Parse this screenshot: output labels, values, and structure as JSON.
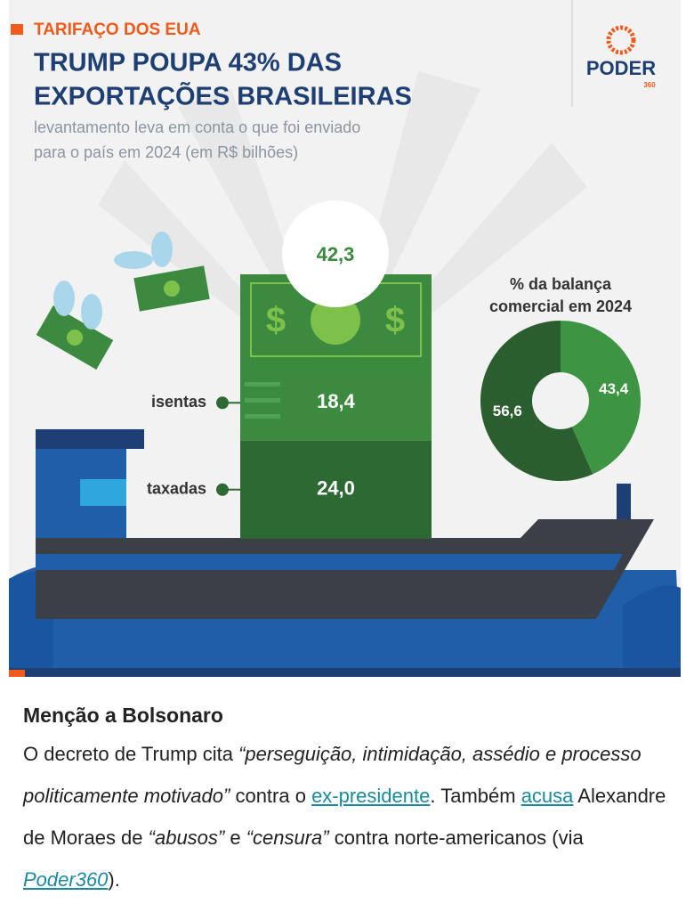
{
  "infographic": {
    "kicker": "TARIFAÇO DOS EUA",
    "title_lines": [
      "TRUMP POUPA 43% DAS",
      "EXPORTAÇÕES BRASILEIRAS"
    ],
    "subtitle_lines": [
      "levantamento leva em conta o que foi enviado",
      "para o país em 2024 (em R$ bilhões)"
    ],
    "logo": "PODER",
    "logo_sub": "360"
  },
  "chart_data": [
    {
      "type": "bar",
      "stacked": true,
      "categories": [
        null
      ],
      "total_label": "42,3",
      "series": [
        {
          "name": "taxadas",
          "color": "#2d6a33",
          "values": [
            24.0
          ],
          "value_labels": [
            "24,0"
          ]
        },
        {
          "name": "isentas",
          "color": "#3b8a40",
          "values": [
            18.4
          ],
          "value_labels": [
            "18,4"
          ]
        }
      ]
    },
    {
      "type": "pie",
      "donut": true,
      "title_lines": [
        "% da balança",
        "comercial em 2024"
      ],
      "categories": [
        null,
        null
      ],
      "values": [
        43.4,
        56.6
      ],
      "value_labels": [
        "43,4",
        "56,6"
      ],
      "colors": [
        "#3d9442",
        "#2a5e2e"
      ]
    }
  ],
  "article": {
    "heading": "Menção a Bolsonaro",
    "paragraph": [
      {
        "text": "O decreto de Trump cita ",
        "style": "plain"
      },
      {
        "text": "“perseguição, intimidação, assédio e processo politicamente motivado”",
        "style": "italic"
      },
      {
        "text": " contra o ",
        "style": "plain"
      },
      {
        "text": "ex-presidente",
        "style": "link"
      },
      {
        "text": ". Também ",
        "style": "plain"
      },
      {
        "text": "acusa",
        "style": "link"
      },
      {
        "text": " Alexandre de Moraes de ",
        "style": "plain"
      },
      {
        "text": "“abusos”",
        "style": "italic"
      },
      {
        "text": " e ",
        "style": "plain"
      },
      {
        "text": "“censura”",
        "style": "italic"
      },
      {
        "text": " contra norte-americanos (via ",
        "style": "plain"
      },
      {
        "text": "Poder360",
        "style": "italic-link"
      },
      {
        "text": ").",
        "style": "plain"
      }
    ]
  }
}
